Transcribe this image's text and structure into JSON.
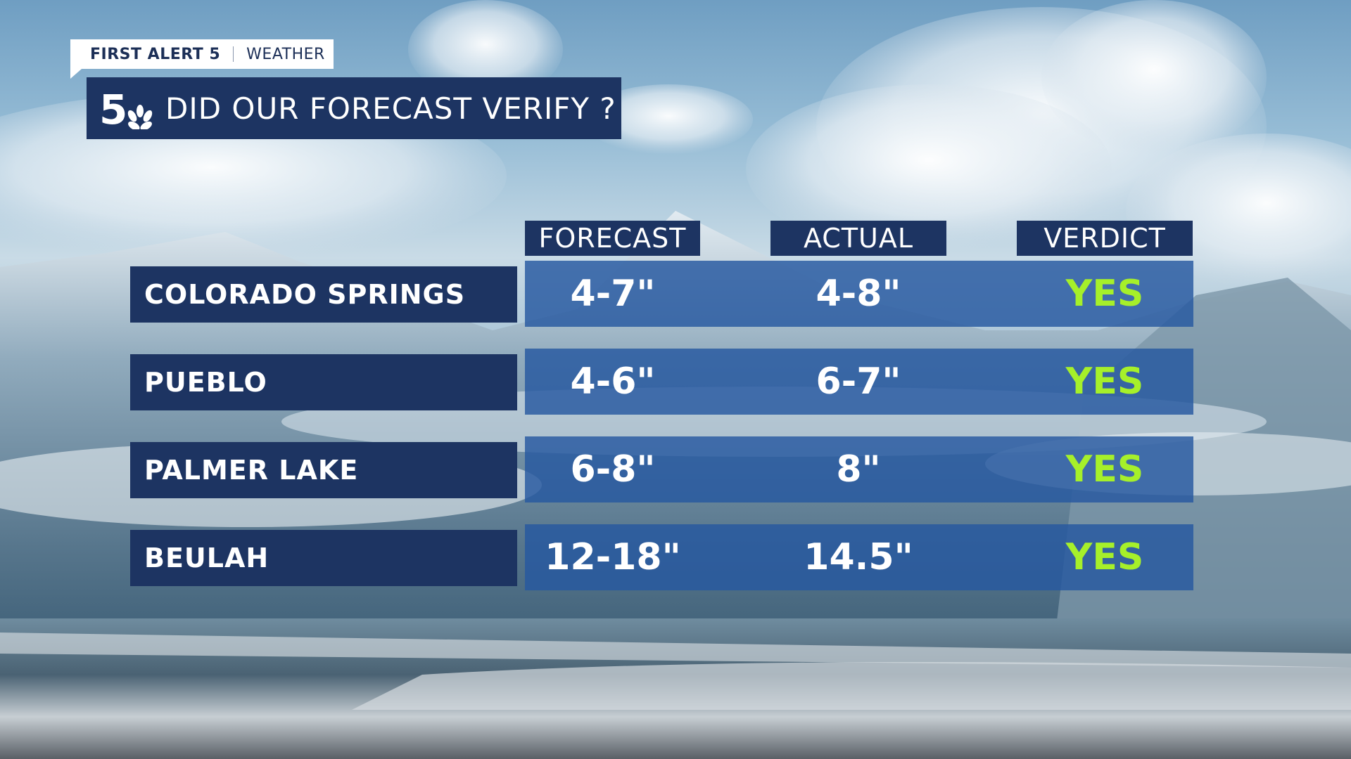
{
  "header": {
    "brand_strong": "FIRST ALERT 5",
    "brand_section": "WEATHER",
    "logo_icon": "nbc-5-logo-icon",
    "title": "DID OUR FORECAST VERIFY ?"
  },
  "table": {
    "columns": [
      "FORECAST",
      "ACTUAL",
      "VERDICT"
    ],
    "rows": [
      {
        "location": "COLORADO SPRINGS",
        "forecast": "4-7\"",
        "actual": "4-8\"",
        "verdict": "YES"
      },
      {
        "location": "PUEBLO",
        "forecast": "4-6\"",
        "actual": "6-7\"",
        "verdict": "YES"
      },
      {
        "location": "PALMER LAKE",
        "forecast": "6-8\"",
        "actual": "8\"",
        "verdict": "YES"
      },
      {
        "location": "BEULAH",
        "forecast": "12-18\"",
        "actual": "14.5\"",
        "verdict": "YES"
      }
    ]
  },
  "colors": {
    "panel_navy": "#1d3462",
    "row_blue": "#2658a0",
    "verdict_green": "#a6f02a"
  }
}
